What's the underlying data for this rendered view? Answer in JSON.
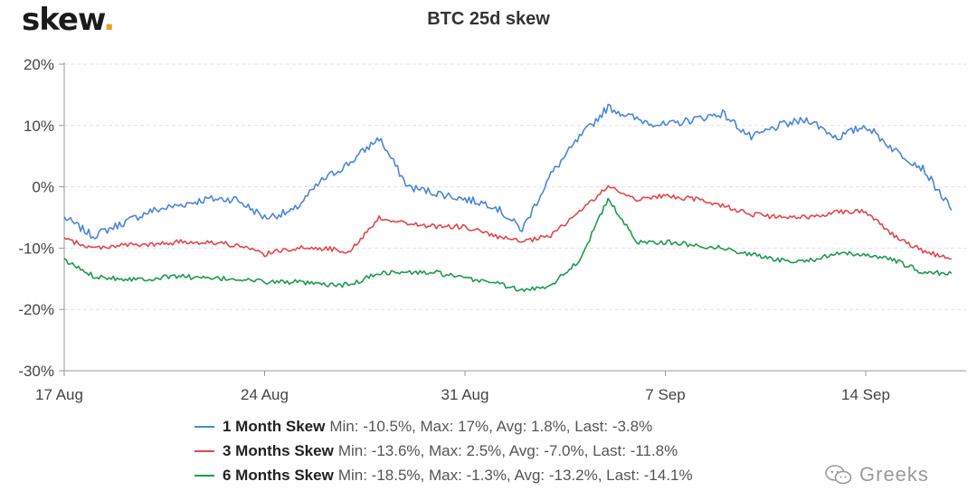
{
  "brand": {
    "name": "skew",
    "dot": "."
  },
  "chart_data": {
    "type": "line",
    "title": "BTC 25d skew",
    "xlabel": "",
    "ylabel": "",
    "x_range": [
      "2020-08-17",
      "2020-09-17"
    ],
    "x_ticks": [
      {
        "date": "2020-08-17",
        "label": "17 Aug"
      },
      {
        "date": "2020-08-24",
        "label": "24 Aug"
      },
      {
        "date": "2020-08-31",
        "label": "31 Aug"
      },
      {
        "date": "2020-09-07",
        "label": "7 Sep"
      },
      {
        "date": "2020-09-14",
        "label": "14 Sep"
      }
    ],
    "ylim": [
      -30,
      20
    ],
    "y_ticks": [
      20,
      10,
      0,
      -10,
      -20,
      -30
    ],
    "y_tick_labels": [
      "20%",
      "10%",
      "0%",
      "-10%",
      "-20%",
      "-30%"
    ],
    "grid": true,
    "legend_position": "bottom",
    "series": [
      {
        "name": "1 Month Skew",
        "color": "#4a86d8",
        "stats": "Min: -10.5%, Max: 17%, Avg: 1.8%, Last: -3.8%",
        "points": [
          [
            "2020-08-17",
            -5
          ],
          [
            "2020-08-18",
            -8
          ],
          [
            "2020-08-19",
            -6
          ],
          [
            "2020-08-20",
            -4
          ],
          [
            "2020-08-21",
            -3
          ],
          [
            "2020-08-22",
            -2
          ],
          [
            "2020-08-23",
            -2
          ],
          [
            "2020-08-24",
            -5
          ],
          [
            "2020-08-25",
            -4
          ],
          [
            "2020-08-26",
            1
          ],
          [
            "2020-08-27",
            4
          ],
          [
            "2020-08-28",
            8
          ],
          [
            "2020-08-29",
            0
          ],
          [
            "2020-08-30",
            -1
          ],
          [
            "2020-08-31",
            -2
          ],
          [
            "2020-09-01",
            -3
          ],
          [
            "2020-09-02",
            -7
          ],
          [
            "2020-09-03",
            2
          ],
          [
            "2020-09-04",
            8
          ],
          [
            "2020-09-05",
            13
          ],
          [
            "2020-09-06",
            11
          ],
          [
            "2020-09-07",
            10
          ],
          [
            "2020-09-08",
            11
          ],
          [
            "2020-09-09",
            12
          ],
          [
            "2020-09-10",
            8
          ],
          [
            "2020-09-11",
            10
          ],
          [
            "2020-09-12",
            11
          ],
          [
            "2020-09-13",
            8
          ],
          [
            "2020-09-14",
            10
          ],
          [
            "2020-09-15",
            6
          ],
          [
            "2020-09-16",
            3
          ],
          [
            "2020-09-17",
            -3.8
          ]
        ]
      },
      {
        "name": "3 Months Skew",
        "color": "#e2474a",
        "stats": "Min: -13.6%, Max: 2.5%, Avg: -7.0%, Last: -11.8%",
        "points": [
          [
            "2020-08-17",
            -8.5
          ],
          [
            "2020-08-18",
            -10
          ],
          [
            "2020-08-19",
            -9.5
          ],
          [
            "2020-08-20",
            -9.5
          ],
          [
            "2020-08-21",
            -9
          ],
          [
            "2020-08-22",
            -9
          ],
          [
            "2020-08-23",
            -9.5
          ],
          [
            "2020-08-24",
            -11
          ],
          [
            "2020-08-25",
            -10
          ],
          [
            "2020-08-26",
            -10
          ],
          [
            "2020-08-27",
            -10.5
          ],
          [
            "2020-08-28",
            -5
          ],
          [
            "2020-08-29",
            -6
          ],
          [
            "2020-08-30",
            -6.5
          ],
          [
            "2020-08-31",
            -6.5
          ],
          [
            "2020-09-01",
            -8
          ],
          [
            "2020-09-02",
            -9
          ],
          [
            "2020-09-03",
            -8
          ],
          [
            "2020-09-04",
            -4
          ],
          [
            "2020-09-05",
            0
          ],
          [
            "2020-09-06",
            -2
          ],
          [
            "2020-09-07",
            -1.5
          ],
          [
            "2020-09-08",
            -2
          ],
          [
            "2020-09-09",
            -3
          ],
          [
            "2020-09-10",
            -4.5
          ],
          [
            "2020-09-11",
            -5
          ],
          [
            "2020-09-12",
            -5
          ],
          [
            "2020-09-13",
            -4
          ],
          [
            "2020-09-14",
            -4
          ],
          [
            "2020-09-15",
            -8
          ],
          [
            "2020-09-16",
            -10.5
          ],
          [
            "2020-09-17",
            -11.8
          ]
        ]
      },
      {
        "name": "6 Months Skew",
        "color": "#1f9a4f",
        "stats": "Min: -18.5%, Max: -1.3%, Avg: -13.2%, Last: -14.1%",
        "points": [
          [
            "2020-08-17",
            -12
          ],
          [
            "2020-08-18",
            -14.5
          ],
          [
            "2020-08-19",
            -15
          ],
          [
            "2020-08-20",
            -15
          ],
          [
            "2020-08-21",
            -14.5
          ],
          [
            "2020-08-22",
            -15
          ],
          [
            "2020-08-23",
            -15
          ],
          [
            "2020-08-24",
            -15.5
          ],
          [
            "2020-08-25",
            -15.5
          ],
          [
            "2020-08-26",
            -16
          ],
          [
            "2020-08-27",
            -16
          ],
          [
            "2020-08-28",
            -14
          ],
          [
            "2020-08-29",
            -14
          ],
          [
            "2020-08-30",
            -14
          ],
          [
            "2020-08-31",
            -15
          ],
          [
            "2020-09-01",
            -15.5
          ],
          [
            "2020-09-02",
            -17
          ],
          [
            "2020-09-03",
            -16
          ],
          [
            "2020-09-04",
            -12
          ],
          [
            "2020-09-05",
            -2
          ],
          [
            "2020-09-06",
            -9
          ],
          [
            "2020-09-07",
            -9
          ],
          [
            "2020-09-08",
            -9.5
          ],
          [
            "2020-09-09",
            -10
          ],
          [
            "2020-09-10",
            -11
          ],
          [
            "2020-09-11",
            -12
          ],
          [
            "2020-09-12",
            -12
          ],
          [
            "2020-09-13",
            -11
          ],
          [
            "2020-09-14",
            -11
          ],
          [
            "2020-09-15",
            -12
          ],
          [
            "2020-09-16",
            -14
          ],
          [
            "2020-09-17",
            -14.1
          ]
        ]
      }
    ]
  },
  "watermark": {
    "text": "Greeks"
  }
}
